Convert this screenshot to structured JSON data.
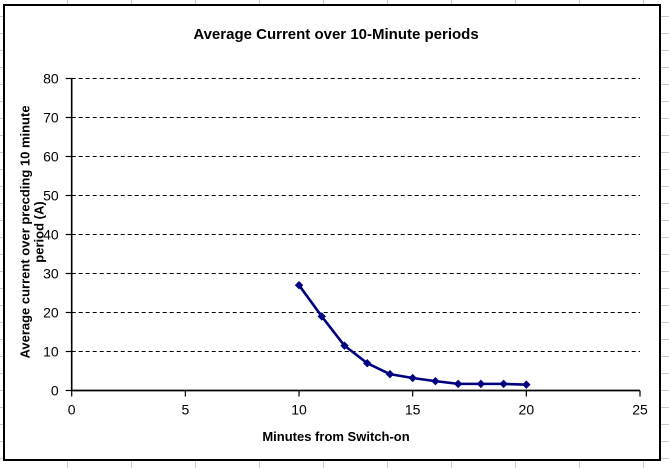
{
  "chart_data": {
    "type": "line",
    "title": "Average Current over 10-Minute periods",
    "xlabel": "Minutes from Switch-on",
    "ylabel_lines": [
      "Average current over precding 10 minute",
      "period (A)"
    ],
    "ylabel": "Average current over precding 10 minute period (A)",
    "x": [
      10,
      11,
      12,
      13,
      14,
      15,
      16,
      17,
      18,
      19,
      20
    ],
    "y": [
      27,
      19,
      11.5,
      7,
      4.2,
      3.2,
      2.4,
      1.7,
      1.7,
      1.7,
      1.5
    ],
    "xlim": [
      0,
      25
    ],
    "ylim": [
      0,
      80
    ],
    "xticks": [
      0,
      5,
      10,
      15,
      20,
      25
    ],
    "yticks": [
      0,
      10,
      20,
      30,
      40,
      50,
      60,
      70,
      80
    ],
    "grid": {
      "horizontal_dashed": true,
      "vertical": false,
      "color": "#000000"
    },
    "legend": "none",
    "line_color": "#000080",
    "marker": "diamond",
    "marker_color": "#000080",
    "axis_color": "#000000",
    "text_color": "#000000",
    "plot_background": "#ffffff"
  }
}
